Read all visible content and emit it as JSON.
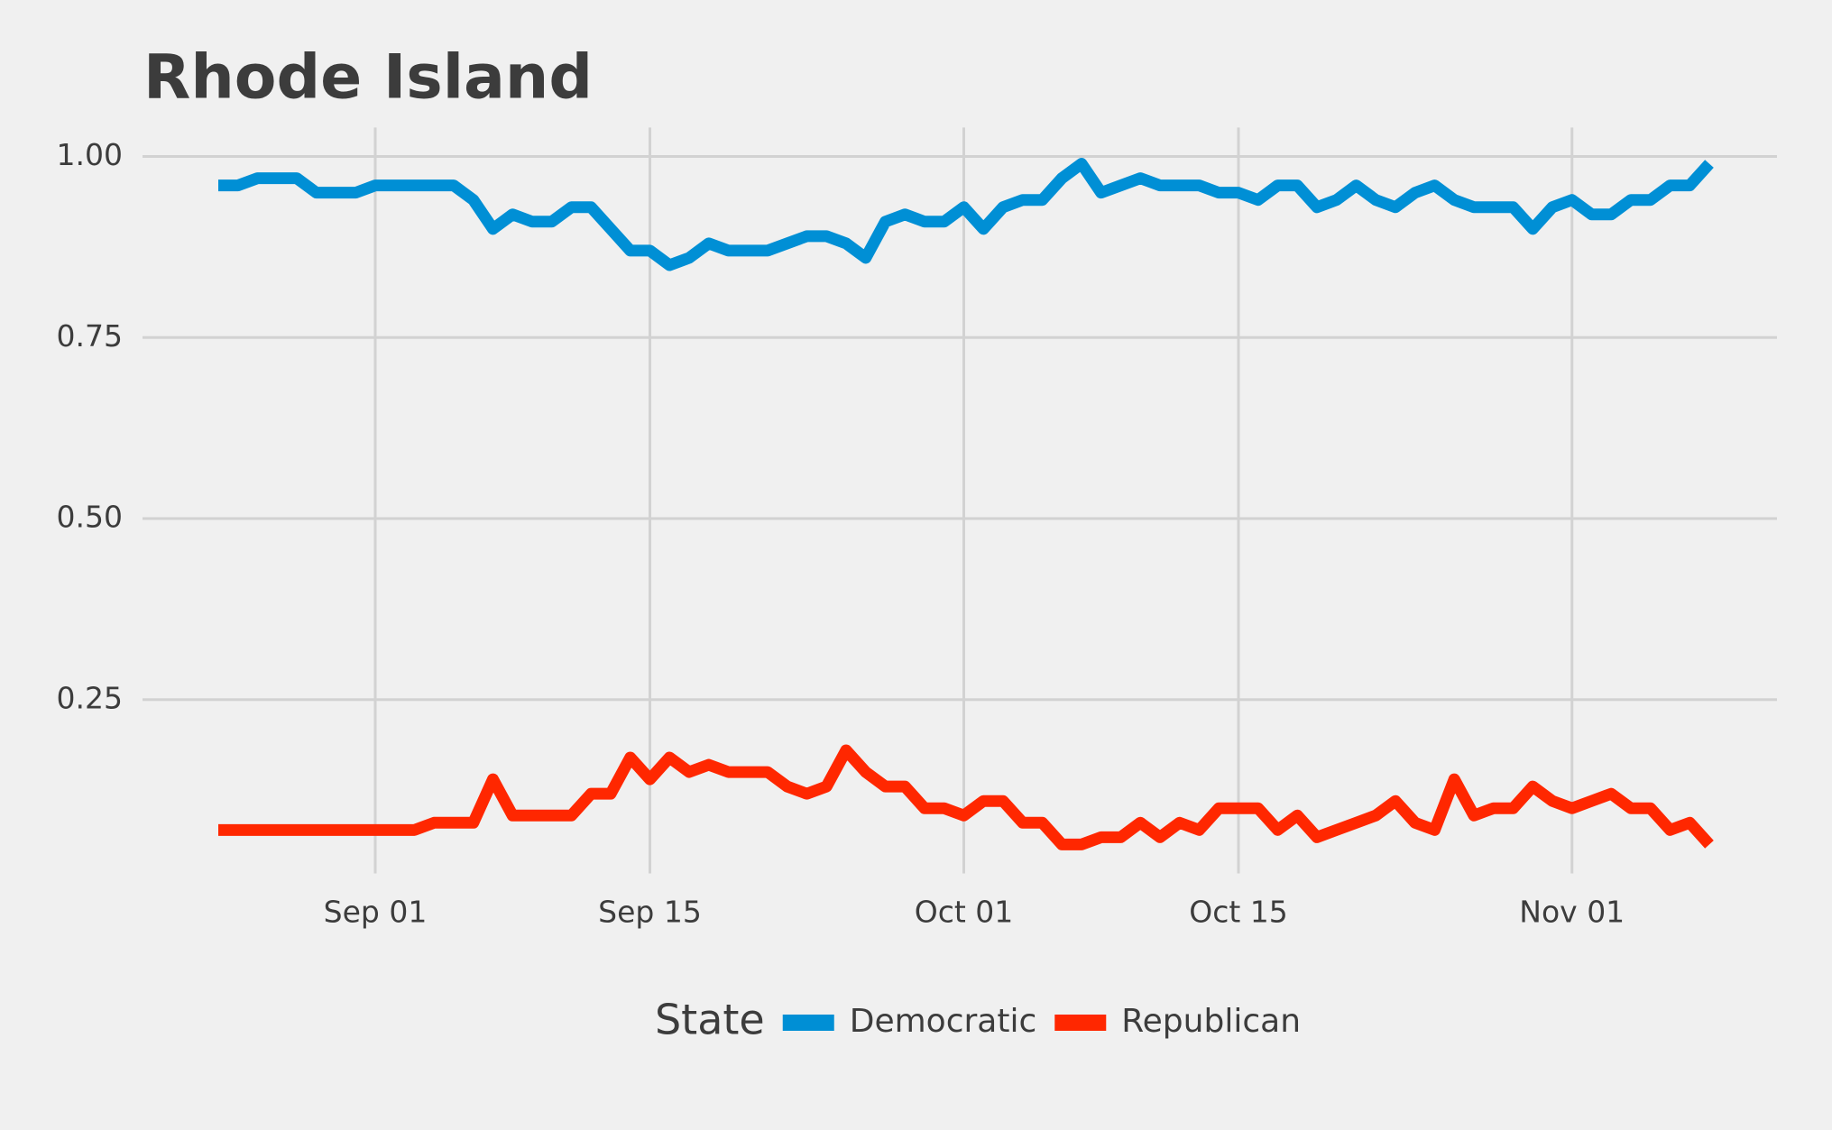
{
  "chart_data": {
    "type": "line",
    "title": "Rhode Island",
    "legend_title": "State",
    "legend": "bottom",
    "grid": true,
    "x": [
      "Aug 24",
      "Aug 25",
      "Aug 26",
      "Aug 27",
      "Aug 28",
      "Aug 29",
      "Aug 30",
      "Aug 31",
      "Sep 01",
      "Sep 02",
      "Sep 03",
      "Sep 04",
      "Sep 05",
      "Sep 06",
      "Sep 07",
      "Sep 08",
      "Sep 09",
      "Sep 10",
      "Sep 11",
      "Sep 12",
      "Sep 13",
      "Sep 14",
      "Sep 15",
      "Sep 16",
      "Sep 17",
      "Sep 18",
      "Sep 19",
      "Sep 20",
      "Sep 21",
      "Sep 22",
      "Sep 23",
      "Sep 24",
      "Sep 25",
      "Sep 26",
      "Sep 27",
      "Sep 28",
      "Sep 29",
      "Sep 30",
      "Oct 01",
      "Oct 02",
      "Oct 03",
      "Oct 04",
      "Oct 05",
      "Oct 06",
      "Oct 07",
      "Oct 08",
      "Oct 09",
      "Oct 10",
      "Oct 11",
      "Oct 12",
      "Oct 13",
      "Oct 14",
      "Oct 15",
      "Oct 16",
      "Oct 17",
      "Oct 18",
      "Oct 19",
      "Oct 20",
      "Oct 21",
      "Oct 22",
      "Oct 23",
      "Oct 24",
      "Oct 25",
      "Oct 26",
      "Oct 27",
      "Oct 28",
      "Oct 29",
      "Oct 30",
      "Oct 31",
      "Nov 01",
      "Nov 02",
      "Nov 03",
      "Nov 04",
      "Nov 05",
      "Nov 06",
      "Nov 07",
      "Nov 08"
    ],
    "xticks": [
      "Sep 01",
      "Sep 15",
      "Oct 01",
      "Oct 15",
      "Nov 01"
    ],
    "ylim": [
      0.01,
      1.04
    ],
    "yticks": [
      {
        "value": 0.25,
        "label": "0.25"
      },
      {
        "value": 0.5,
        "label": "0.50"
      },
      {
        "value": 0.75,
        "label": "0.75"
      },
      {
        "value": 1,
        "label": "1.00"
      }
    ],
    "series": [
      {
        "name": "Democratic",
        "color": "#008fd5",
        "values": [
          0.96,
          0.96,
          0.97,
          0.97,
          0.97,
          0.95,
          0.95,
          0.95,
          0.96,
          0.96,
          0.96,
          0.96,
          0.96,
          0.94,
          0.9,
          0.92,
          0.91,
          0.91,
          0.93,
          0.93,
          0.9,
          0.87,
          0.87,
          0.85,
          0.86,
          0.88,
          0.87,
          0.87,
          0.87,
          0.88,
          0.89,
          0.89,
          0.88,
          0.86,
          0.91,
          0.92,
          0.91,
          0.91,
          0.93,
          0.9,
          0.93,
          0.94,
          0.94,
          0.97,
          0.99,
          0.95,
          0.96,
          0.97,
          0.96,
          0.96,
          0.96,
          0.95,
          0.95,
          0.94,
          0.96,
          0.96,
          0.93,
          0.94,
          0.96,
          0.94,
          0.93,
          0.95,
          0.96,
          0.94,
          0.93,
          0.93,
          0.93,
          0.9,
          0.93,
          0.94,
          0.92,
          0.92,
          0.94,
          0.94,
          0.96,
          0.96,
          0.99
        ]
      },
      {
        "name": "Republican",
        "color": "#ff2700",
        "values": [
          0.07,
          0.07,
          0.07,
          0.07,
          0.07,
          0.07,
          0.07,
          0.07,
          0.07,
          0.07,
          0.07,
          0.08,
          0.08,
          0.08,
          0.14,
          0.09,
          0.09,
          0.09,
          0.09,
          0.12,
          0.12,
          0.17,
          0.14,
          0.17,
          0.15,
          0.16,
          0.15,
          0.15,
          0.15,
          0.13,
          0.12,
          0.13,
          0.18,
          0.15,
          0.13,
          0.13,
          0.1,
          0.1,
          0.09,
          0.11,
          0.11,
          0.08,
          0.08,
          0.05,
          0.05,
          0.06,
          0.06,
          0.08,
          0.06,
          0.08,
          0.07,
          0.1,
          0.1,
          0.1,
          0.07,
          0.09,
          0.06,
          0.07,
          0.08,
          0.09,
          0.11,
          0.08,
          0.07,
          0.14,
          0.09,
          0.1,
          0.1,
          0.13,
          0.11,
          0.1,
          0.11,
          0.12,
          0.1,
          0.1,
          0.07,
          0.08,
          0.05
        ]
      }
    ]
  }
}
